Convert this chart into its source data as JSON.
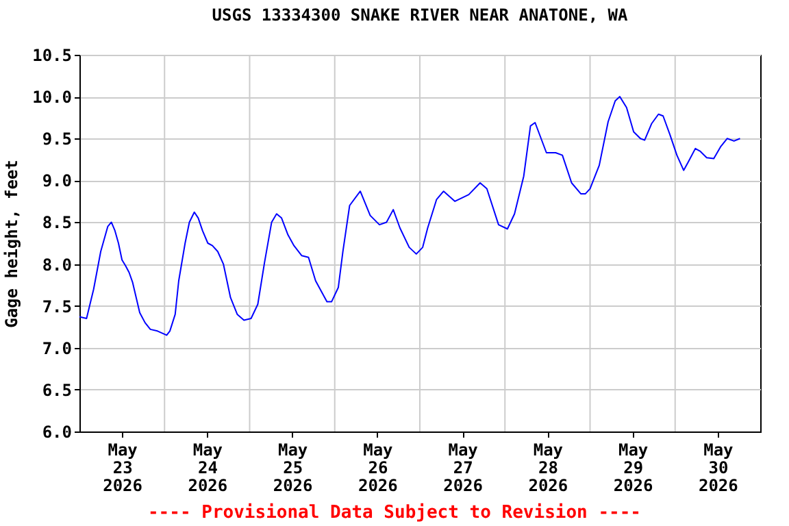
{
  "chart_data": {
    "type": "line",
    "title": "USGS 13334300 SNAKE RIVER NEAR ANATONE, WA",
    "ylabel": "Gage height, feet",
    "annotations": [
      "---- Provisional Data Subject to Revision ----"
    ],
    "xlim": [
      "2026-05-23T00:00",
      "2026-05-31T00:00"
    ],
    "xticks": [
      {
        "value": "2026-05-23T12:00",
        "label": "May\n23\n2026"
      },
      {
        "value": "2026-05-24T12:00",
        "label": "May\n24\n2026"
      },
      {
        "value": "2026-05-25T12:00",
        "label": "May\n25\n2026"
      },
      {
        "value": "2026-05-26T12:00",
        "label": "May\n26\n2026"
      },
      {
        "value": "2026-05-27T12:00",
        "label": "May\n27\n2026"
      },
      {
        "value": "2026-05-28T12:00",
        "label": "May\n28\n2026"
      },
      {
        "value": "2026-05-29T12:00",
        "label": "May\n29\n2026"
      },
      {
        "value": "2026-05-30T12:00",
        "label": "May\n30\n2026"
      },
      {
        "value": "2026-05-24T00:00",
        "label": null
      },
      {
        "value": "2026-05-25T00:00",
        "label": null
      },
      {
        "value": "2026-05-26T00:00",
        "label": null
      },
      {
        "value": "2026-05-27T00:00",
        "label": null
      },
      {
        "value": "2026-05-28T00:00",
        "label": null
      },
      {
        "value": "2026-05-29T00:00",
        "label": null
      },
      {
        "value": "2026-05-30T00:00",
        "label": null
      }
    ],
    "ylim": [
      6.0,
      10.5
    ],
    "yticks": [
      {
        "value": 6.0,
        "label": "6.0"
      },
      {
        "value": 6.5,
        "label": "6.5"
      },
      {
        "value": 7.0,
        "label": "7.0"
      },
      {
        "value": 7.5,
        "label": "7.5"
      },
      {
        "value": 8.0,
        "label": "8.0"
      },
      {
        "value": 8.5,
        "label": "8.5"
      },
      {
        "value": 9.0,
        "label": "9.0"
      },
      {
        "value": 9.5,
        "label": "9.5"
      },
      {
        "value": 10.0,
        "label": "10.0"
      },
      {
        "value": 10.5,
        "label": "10.5"
      }
    ],
    "grid": true,
    "legend": false,
    "marker": "none",
    "line_style": "solid",
    "x": [
      "2026-05-23T00:00",
      "2026-05-23T02:00",
      "2026-05-23T04:00",
      "2026-05-23T06:00",
      "2026-05-23T08:00",
      "2026-05-23T09:00",
      "2026-05-23T10:00",
      "2026-05-23T11:00",
      "2026-05-23T12:00",
      "2026-05-23T13:00",
      "2026-05-23T14:00",
      "2026-05-23T15:00",
      "2026-05-23T16:00",
      "2026-05-23T17:00",
      "2026-05-23T18:30",
      "2026-05-23T20:00",
      "2026-05-23T22:00",
      "2026-05-24T00:36",
      "2026-05-24T01:30",
      "2026-05-24T03:00",
      "2026-05-24T04:00",
      "2026-05-24T05:48",
      "2026-05-24T07:00",
      "2026-05-24T08:24",
      "2026-05-24T09:30",
      "2026-05-24T10:42",
      "2026-05-24T12:12",
      "2026-05-24T13:30",
      "2026-05-24T15:00",
      "2026-05-24T16:36",
      "2026-05-24T18:36",
      "2026-05-24T20:30",
      "2026-05-24T22:24",
      "2026-05-25T00:24",
      "2026-05-25T02:18",
      "2026-05-25T04:12",
      "2026-05-25T06:12",
      "2026-05-25T07:36",
      "2026-05-25T09:00",
      "2026-05-25T10:48",
      "2026-05-25T12:30",
      "2026-05-25T14:42",
      "2026-05-25T16:36",
      "2026-05-25T18:36",
      "2026-05-25T21:48",
      "2026-05-25T23:06",
      "2026-05-26T01:00",
      "2026-05-26T02:18",
      "2026-05-26T04:12",
      "2026-05-26T07:12",
      "2026-05-26T10:00",
      "2026-05-26T12:36",
      "2026-05-26T14:36",
      "2026-05-26T16:30",
      "2026-05-26T18:24",
      "2026-05-26T21:00",
      "2026-05-26T23:00",
      "2026-05-27T00:48",
      "2026-05-27T02:12",
      "2026-05-27T04:42",
      "2026-05-27T06:42",
      "2026-05-27T09:54",
      "2026-05-27T13:48",
      "2026-05-27T17:00",
      "2026-05-27T18:54",
      "2026-05-27T22:12",
      "2026-05-28T00:42",
      "2026-05-28T02:42",
      "2026-05-28T05:18",
      "2026-05-28T07:12",
      "2026-05-28T08:30",
      "2026-05-28T11:42",
      "2026-05-28T14:18",
      "2026-05-28T16:12",
      "2026-05-28T18:48",
      "2026-05-28T21:24",
      "2026-05-28T22:42",
      "2026-05-29T00:00",
      "2026-05-29T02:36",
      "2026-05-29T05:06",
      "2026-05-29T07:06",
      "2026-05-29T08:24",
      "2026-05-29T10:18",
      "2026-05-29T12:18",
      "2026-05-29T14:12",
      "2026-05-29T15:24",
      "2026-05-29T17:24",
      "2026-05-29T19:18",
      "2026-05-29T20:36",
      "2026-05-29T22:30",
      "2026-05-30T00:30",
      "2026-05-30T02:24",
      "2026-05-30T03:42",
      "2026-05-30T05:42",
      "2026-05-30T07:00",
      "2026-05-30T08:54",
      "2026-05-30T10:54",
      "2026-05-30T12:48",
      "2026-05-30T14:42",
      "2026-05-30T16:36",
      "2026-05-30T18:18"
    ],
    "series": [
      {
        "color": "#0000ff",
        "values": [
          7.37,
          7.35,
          7.7,
          8.15,
          8.45,
          8.5,
          8.4,
          8.25,
          8.05,
          7.98,
          7.9,
          7.78,
          7.6,
          7.42,
          7.3,
          7.22,
          7.2,
          7.15,
          7.2,
          7.4,
          7.8,
          8.25,
          8.5,
          8.62,
          8.55,
          8.4,
          8.25,
          8.22,
          8.15,
          8.0,
          7.6,
          7.4,
          7.33,
          7.35,
          7.52,
          8.02,
          8.5,
          8.6,
          8.55,
          8.35,
          8.22,
          8.1,
          8.08,
          7.8,
          7.55,
          7.55,
          7.72,
          8.15,
          8.7,
          8.87,
          8.58,
          8.47,
          8.5,
          8.65,
          8.43,
          8.2,
          8.12,
          8.2,
          8.43,
          8.77,
          8.87,
          8.75,
          8.83,
          8.97,
          8.9,
          8.47,
          8.42,
          8.6,
          9.05,
          9.65,
          9.69,
          9.33,
          9.33,
          9.3,
          8.97,
          8.84,
          8.84,
          8.9,
          9.18,
          9.7,
          9.95,
          10.0,
          9.87,
          9.58,
          9.5,
          9.48,
          9.68,
          9.79,
          9.77,
          9.55,
          9.3,
          9.12,
          9.22,
          9.38,
          9.35,
          9.27,
          9.26,
          9.4,
          9.5,
          9.47,
          9.5
        ]
      }
    ]
  }
}
